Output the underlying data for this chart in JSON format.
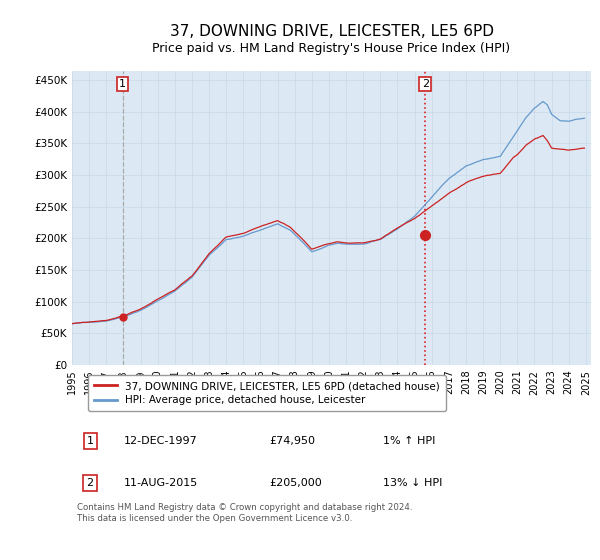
{
  "title": "37, DOWNING DRIVE, LEICESTER, LE5 6PD",
  "subtitle": "Price paid vs. HM Land Registry's House Price Index (HPI)",
  "title_fontsize": 11,
  "subtitle_fontsize": 9,
  "background_color": "#ffffff",
  "grid_color": "#c8d8e8",
  "plot_bg_color": "#dce9f5",
  "ylabel_ticks": [
    "£0",
    "£50K",
    "£100K",
    "£150K",
    "£200K",
    "£250K",
    "£300K",
    "£350K",
    "£400K",
    "£450K"
  ],
  "ytick_values": [
    0,
    50000,
    100000,
    150000,
    200000,
    250000,
    300000,
    350000,
    400000,
    450000
  ],
  "ylim": [
    0,
    465000
  ],
  "xlim_start": 1995.0,
  "xlim_end": 2025.3,
  "xtick_years": [
    1995,
    1996,
    1997,
    1998,
    1999,
    2000,
    2001,
    2002,
    2003,
    2004,
    2005,
    2006,
    2007,
    2008,
    2009,
    2010,
    2011,
    2012,
    2013,
    2014,
    2015,
    2016,
    2017,
    2018,
    2019,
    2020,
    2021,
    2022,
    2023,
    2024,
    2025
  ],
  "marker1_x": 1997.95,
  "marker1_y": 74950,
  "marker2_x": 2015.62,
  "marker2_y": 205000,
  "vline1_x": 1997.95,
  "vline2_x": 2015.62,
  "vline1_color": "#aaaaaa",
  "vline2_color": "#dd2222",
  "legend_line1": "37, DOWNING DRIVE, LEICESTER, LE5 6PD (detached house)",
  "legend_line2": "HPI: Average price, detached house, Leicester",
  "annotation1_label": "1",
  "annotation2_label": "2",
  "table_row1": [
    "1",
    "12-DEC-1997",
    "£74,950",
    "1% ↑ HPI"
  ],
  "table_row2": [
    "2",
    "11-AUG-2015",
    "£205,000",
    "13% ↓ HPI"
  ],
  "footer": "Contains HM Land Registry data © Crown copyright and database right 2024.\nThis data is licensed under the Open Government Licence v3.0.",
  "hpi_color": "#6699cc",
  "price_color": "#cc2222",
  "marker_color": "#cc2222"
}
